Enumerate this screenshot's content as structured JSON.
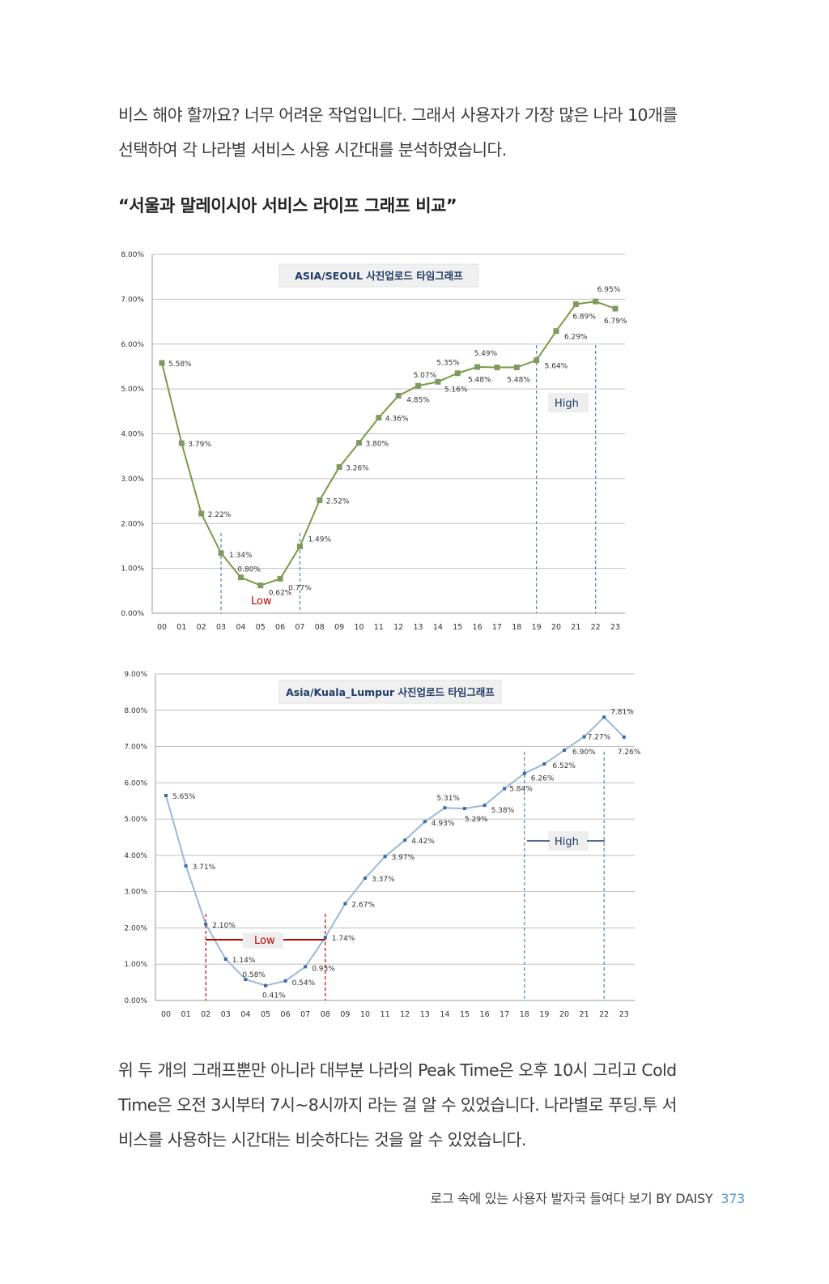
{
  "intro": {
    "line1": "비스 해야 할까요? 너무 어려운 작업입니다. 그래서 사용자가 가장 많은 나라 10개를",
    "line2": "선택하여 각 나라별 서비스 사용 시간대를 분석하였습니다."
  },
  "section_title": "“서울과 말레이시아 서비스 라이프 그래프 비교”",
  "chart_data": [
    {
      "type": "line",
      "title": "ASIA/SEOUL 사진업로드 타임그래프",
      "categories": [
        "00",
        "01",
        "02",
        "03",
        "04",
        "05",
        "06",
        "07",
        "08",
        "09",
        "10",
        "11",
        "12",
        "13",
        "14",
        "15",
        "16",
        "17",
        "18",
        "19",
        "20",
        "21",
        "22",
        "23"
      ],
      "series": [
        {
          "values": [
            5.58,
            3.79,
            2.22,
            1.34,
            0.8,
            0.62,
            0.77,
            1.49,
            2.52,
            3.26,
            3.8,
            4.36,
            4.85,
            5.07,
            5.16,
            5.35,
            5.49,
            5.48,
            5.48,
            5.64,
            6.29,
            6.89,
            6.95,
            6.79
          ]
        }
      ],
      "data_labels": [
        "5.58%",
        "3.79%",
        "2.22%",
        "1.34%",
        "0.80%",
        "0.62%",
        "0.77%",
        "1.49%",
        "2.52%",
        "3.26%",
        "3.80%",
        "4.36%",
        "4.85%",
        "5.07%",
        "5.16%",
        "5.35%",
        "5.49%",
        "5.48%",
        "5.48%",
        "5.64%",
        "6.29%",
        "6.89%",
        "6.95%",
        "6.79%"
      ],
      "y_ticks": [
        "0.00%",
        "1.00%",
        "2.00%",
        "3.00%",
        "4.00%",
        "5.00%",
        "6.00%",
        "7.00%",
        "8.00%"
      ],
      "ylim": [
        0,
        8
      ],
      "grid": true,
      "line_color": "#7a9a45",
      "marker_color": "#7f9a60",
      "annotations": {
        "low": "Low",
        "high": "High",
        "low_range": [
          "03",
          "07"
        ],
        "high_range": [
          "19",
          "22"
        ]
      }
    },
    {
      "type": "line",
      "title": "Asia/Kuala_Lumpur 사진업로드 타임그래프",
      "categories": [
        "00",
        "01",
        "02",
        "03",
        "04",
        "05",
        "06",
        "07",
        "08",
        "09",
        "10",
        "11",
        "12",
        "13",
        "14",
        "15",
        "16",
        "17",
        "18",
        "19",
        "20",
        "21",
        "22",
        "23"
      ],
      "series": [
        {
          "values": [
            5.65,
            3.71,
            2.1,
            1.14,
            0.58,
            0.41,
            0.54,
            0.93,
            1.74,
            2.67,
            3.37,
            3.97,
            4.42,
            4.93,
            5.31,
            5.29,
            5.38,
            5.84,
            6.26,
            6.52,
            6.9,
            7.27,
            7.81,
            7.26
          ]
        }
      ],
      "data_labels": [
        "5.65%",
        "3.71%",
        "2.10%",
        "1.14%",
        "0.58%",
        "0.41%",
        "0.54%",
        "0.93%",
        "1.74%",
        "2.67%",
        "3.37%",
        "3.97%",
        "4.42%",
        "4.93%",
        "5.31%",
        "5.29%",
        "5.38%",
        "5.84%",
        "6.26%",
        "6.52%",
        "6.90%",
        "7.27%",
        "7.81%",
        "7.26%"
      ],
      "y_ticks": [
        "0.00%",
        "1.00%",
        "2.00%",
        "3.00%",
        "4.00%",
        "5.00%",
        "6.00%",
        "7.00%",
        "8.00%",
        "9.00%"
      ],
      "ylim": [
        0,
        9
      ],
      "grid": true,
      "line_color": "#9ab8d8",
      "marker_color": "#3c68a8",
      "annotations": {
        "low": "Low",
        "high": "High",
        "low_range": [
          "02",
          "08"
        ],
        "high_range": [
          "18",
          "22"
        ]
      }
    }
  ],
  "conclusion": {
    "line1": "위 두 개의 그래프뿐만 아니라 대부분 나라의 Peak Time은 오후 10시 그리고 Cold",
    "line2": "Time은 오전 3시부터 7시~8시까지 라는 걸 알 수 있었습니다. 나라별로 푸딩.투 서",
    "line3": "비스를 사용하는 시간대는 비슷하다는 것을 알 수 있었습니다."
  },
  "footer": {
    "book_title": "로그 속에 있는  사용자 발자국 들여다 보기 BY DAISY",
    "page_number": "373"
  }
}
